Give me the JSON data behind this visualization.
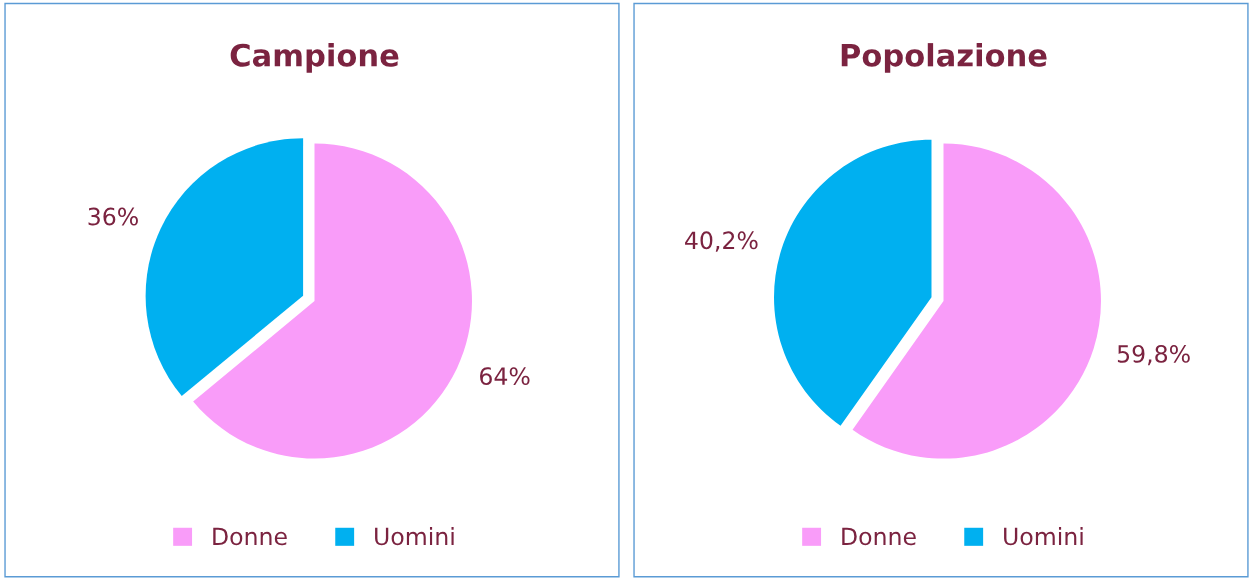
{
  "chart_data": [
    {
      "type": "pie",
      "title": "Campione",
      "categories": [
        "Donne",
        "Uomini"
      ],
      "values": [
        64,
        36
      ],
      "colors": [
        "#f99cf9",
        "#00b0f0"
      ],
      "value_labels": [
        "64%",
        "36%"
      ],
      "legend": "bottom"
    },
    {
      "type": "pie",
      "title": "Popolazione",
      "categories": [
        "Donne",
        "Uomini"
      ],
      "values": [
        59.8,
        40.2
      ],
      "colors": [
        "#f99cf9",
        "#00b0f0"
      ],
      "value_labels": [
        "59,8%",
        "40,2%"
      ],
      "legend": "bottom"
    }
  ]
}
